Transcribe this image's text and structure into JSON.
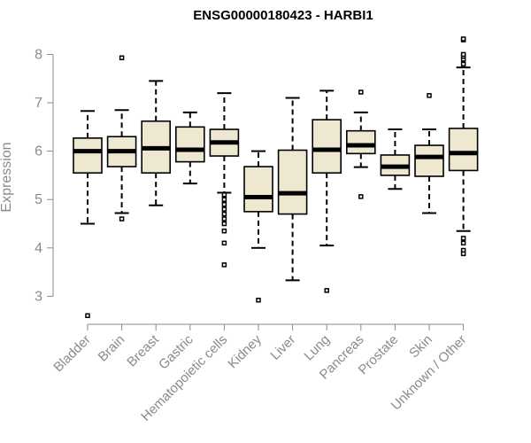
{
  "chart_data": {
    "type": "boxplot",
    "title": "ENSG00000180423 - HARBI1",
    "xlabel": "",
    "ylabel": "Expression",
    "ylim": [
      2.5,
      8.4
    ],
    "yticks": [
      3,
      4,
      5,
      6,
      7,
      8
    ],
    "grid": false,
    "categories": [
      "Bladder",
      "Brain",
      "Breast",
      "Gastric",
      "Hematopoietic cells",
      "Kidney",
      "Liver",
      "Lung",
      "Pancreas",
      "Prostate",
      "Skin",
      "Unknown / Other"
    ],
    "boxes": [
      {
        "name": "Bladder",
        "whisker_low": 4.5,
        "q1": 5.55,
        "median": 6.0,
        "q3": 6.27,
        "whisker_high": 6.83,
        "outliers": [
          2.6
        ]
      },
      {
        "name": "Brain",
        "whisker_low": 4.72,
        "q1": 5.68,
        "median": 6.0,
        "q3": 6.3,
        "whisker_high": 6.85,
        "outliers": [
          4.6,
          7.93
        ]
      },
      {
        "name": "Breast",
        "whisker_low": 4.88,
        "q1": 5.55,
        "median": 6.06,
        "q3": 6.62,
        "whisker_high": 7.45,
        "outliers": []
      },
      {
        "name": "Gastric",
        "whisker_low": 5.33,
        "q1": 5.78,
        "median": 6.03,
        "q3": 6.5,
        "whisker_high": 6.8,
        "outliers": []
      },
      {
        "name": "Hematopoietic cells",
        "whisker_low": 5.14,
        "q1": 5.9,
        "median": 6.18,
        "q3": 6.45,
        "whisker_high": 7.2,
        "outliers": [
          5.1,
          5.0,
          4.9,
          4.8,
          4.7,
          4.6,
          4.5,
          4.35,
          4.1,
          3.65
        ]
      },
      {
        "name": "Kidney",
        "whisker_low": 4.0,
        "q1": 4.75,
        "median": 5.05,
        "q3": 5.68,
        "whisker_high": 6.0,
        "outliers": [
          2.92
        ]
      },
      {
        "name": "Liver",
        "whisker_low": 3.33,
        "q1": 4.7,
        "median": 5.13,
        "q3": 6.02,
        "whisker_high": 7.1,
        "outliers": []
      },
      {
        "name": "Lung",
        "whisker_low": 4.05,
        "q1": 5.55,
        "median": 6.03,
        "q3": 6.65,
        "whisker_high": 7.25,
        "outliers": [
          3.12
        ]
      },
      {
        "name": "Pancreas",
        "whisker_low": 5.67,
        "q1": 5.95,
        "median": 6.12,
        "q3": 6.42,
        "whisker_high": 6.8,
        "outliers": [
          5.06,
          7.22
        ]
      },
      {
        "name": "Prostate",
        "whisker_low": 5.22,
        "q1": 5.5,
        "median": 5.68,
        "q3": 5.92,
        "whisker_high": 6.45,
        "outliers": []
      },
      {
        "name": "Skin",
        "whisker_low": 4.72,
        "q1": 5.48,
        "median": 5.88,
        "q3": 6.12,
        "whisker_high": 6.45,
        "outliers": [
          7.15
        ]
      },
      {
        "name": "Unknown / Other",
        "whisker_low": 4.35,
        "q1": 5.6,
        "median": 5.96,
        "q3": 6.47,
        "whisker_high": 7.73,
        "outliers": [
          4.2,
          4.1,
          3.95,
          3.88,
          7.8,
          7.9,
          7.96,
          8.0,
          8.3,
          8.32
        ]
      }
    ]
  }
}
